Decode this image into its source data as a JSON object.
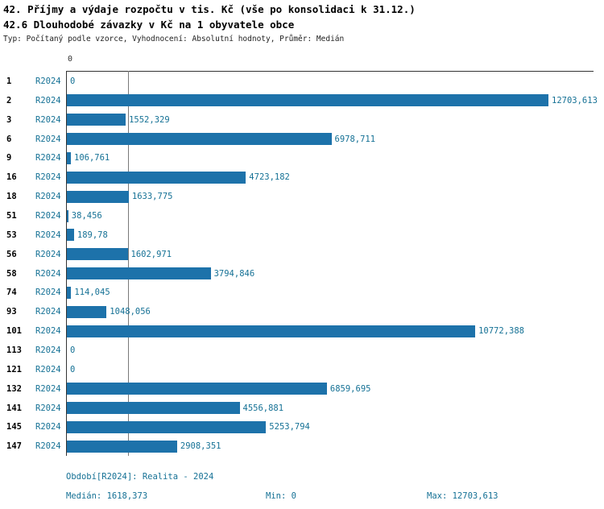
{
  "title1": "42. Příjmy a výdaje rozpočtu v tis. Kč (vše po konsolidaci k 31.12.)",
  "title2": "42.6 Dlouhodobé závazky v Kč na 1 obyvatele obce",
  "subtitle": "Typ: Počítaný podle vzorce, Vyhodnocení: Absolutní hodnoty, Průměr: Medián",
  "axis": {
    "zero_label": "0"
  },
  "colors": {
    "bar": "#1d72aa",
    "label": "#157195"
  },
  "chart_data": {
    "type": "bar",
    "orientation": "horizontal",
    "title": "42.6 Dlouhodobé závazky v Kč na 1 obyvatele obce",
    "series_label": "R2024",
    "categories": [
      "1",
      "2",
      "3",
      "6",
      "9",
      "16",
      "18",
      "51",
      "53",
      "56",
      "58",
      "74",
      "93",
      "101",
      "113",
      "121",
      "132",
      "141",
      "145",
      "147"
    ],
    "values": [
      0,
      12703.613,
      1552.329,
      6978.711,
      106.761,
      4723.182,
      1633.775,
      38.456,
      189.78,
      1602.971,
      3794.846,
      114.045,
      1048.056,
      10772.388,
      0,
      0,
      6859.695,
      4556.881,
      5253.794,
      2908.351
    ],
    "value_labels": [
      "0",
      "12703,613",
      "1552,329",
      "6978,711",
      "106,761",
      "4723,182",
      "1633,775",
      "38,456",
      "189,78",
      "1602,971",
      "3794,846",
      "114,045",
      "1048,056",
      "10772,388",
      "0",
      "0",
      "6859,695",
      "4556,881",
      "5253,794",
      "2908,351"
    ],
    "median": 1618.373,
    "min": 0,
    "max": 12703.613,
    "xlim": [
      0,
      13890
    ],
    "grid": false,
    "legend_position": "none"
  },
  "footer": {
    "period": "Období[R2024]: Realita - 2024",
    "median": "Medián: 1618,373",
    "min": "Min: 0",
    "max": "Max: 12703,613"
  }
}
